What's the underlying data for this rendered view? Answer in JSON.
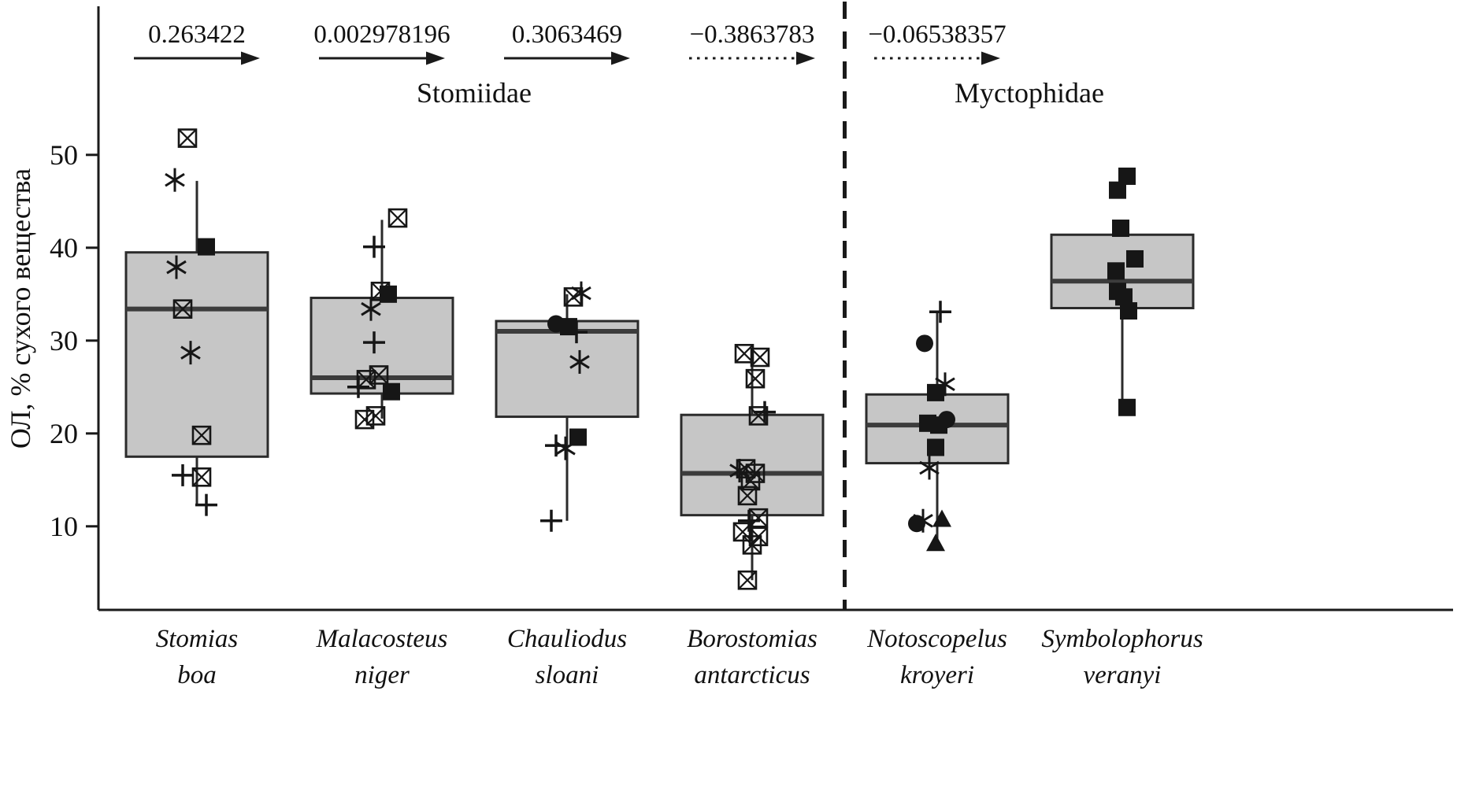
{
  "chart_data": {
    "type": "box",
    "title": "",
    "y_axis": {
      "label": "ОЛ, % сухого вещества",
      "ticks": [
        10,
        20,
        30,
        40,
        50
      ],
      "ylim": [
        1,
        66
      ]
    },
    "families": [
      {
        "name": "Stomiidae",
        "span": [
          0,
          3
        ]
      },
      {
        "name": "Myctophidae",
        "span": [
          4,
          5
        ]
      }
    ],
    "separator_after_index": 3,
    "colors": {
      "axis": "#1a1a1a",
      "box_fill": "#c6c6c6",
      "box_stroke": "#2b2b2b",
      "median": "#3c3c3c",
      "marker": "#161616"
    },
    "categories": [
      {
        "label_line1": "Stomias",
        "label_line2": "boa",
        "trend": {
          "value": "0.263422",
          "style": "solid"
        },
        "box": {
          "q1": 17.5,
          "median": 33.4,
          "q3": 39.5,
          "whisker_low": 12.3,
          "whisker_high": 47.2
        },
        "points": [
          {
            "marker": "boxed-x",
            "value": 51.8,
            "dx": -12
          },
          {
            "marker": "asterisk",
            "value": 47.3,
            "dx": -28
          },
          {
            "marker": "filled-square",
            "value": 40.1,
            "dx": 12
          },
          {
            "marker": "asterisk",
            "value": 37.9,
            "dx": -26
          },
          {
            "marker": "boxed-x",
            "value": 33.4,
            "dx": -18
          },
          {
            "marker": "asterisk",
            "value": 28.7,
            "dx": -8
          },
          {
            "marker": "boxed-x",
            "value": 19.8,
            "dx": 6
          },
          {
            "marker": "plus",
            "value": 15.5,
            "dx": -18
          },
          {
            "marker": "boxed-x",
            "value": 15.3,
            "dx": 6
          },
          {
            "marker": "plus",
            "value": 12.3,
            "dx": 12
          }
        ]
      },
      {
        "label_line1": "Malacosteus",
        "label_line2": "niger",
        "trend": {
          "value": "0.002978196",
          "style": "solid"
        },
        "box": {
          "q1": 24.3,
          "median": 26.0,
          "q3": 34.6,
          "whisker_low": 21.6,
          "whisker_high": 43.0
        },
        "points": [
          {
            "marker": "boxed-x",
            "value": 43.2,
            "dx": 20
          },
          {
            "marker": "plus",
            "value": 40.1,
            "dx": -10
          },
          {
            "marker": "boxed-x",
            "value": 35.3,
            "dx": -2
          },
          {
            "marker": "filled-square",
            "value": 35.0,
            "dx": 8
          },
          {
            "marker": "asterisk",
            "value": 33.4,
            "dx": -14
          },
          {
            "marker": "plus",
            "value": 29.8,
            "dx": -10
          },
          {
            "marker": "boxed-x",
            "value": 26.3,
            "dx": -4
          },
          {
            "marker": "boxed-x",
            "value": 25.8,
            "dx": -20
          },
          {
            "marker": "plus",
            "value": 25.0,
            "dx": -30
          },
          {
            "marker": "filled-square",
            "value": 24.5,
            "dx": 12
          },
          {
            "marker": "boxed-x",
            "value": 21.9,
            "dx": -8
          },
          {
            "marker": "boxed-x",
            "value": 21.5,
            "dx": -22
          }
        ]
      },
      {
        "label_line1": "Chauliodus",
        "label_line2": "sloani",
        "trend": {
          "value": "0.3063469",
          "style": "solid"
        },
        "box": {
          "q1": 21.8,
          "median": 31.0,
          "q3": 32.1,
          "whisker_low": 10.6,
          "whisker_high": 35.0
        },
        "points": [
          {
            "marker": "asterisk",
            "value": 35.1,
            "dx": 18
          },
          {
            "marker": "boxed-x",
            "value": 34.7,
            "dx": 8
          },
          {
            "marker": "filled-circle",
            "value": 31.8,
            "dx": -14
          },
          {
            "marker": "filled-square",
            "value": 31.5,
            "dx": 2
          },
          {
            "marker": "plus",
            "value": 30.9,
            "dx": 12
          },
          {
            "marker": "asterisk",
            "value": 27.7,
            "dx": 16
          },
          {
            "marker": "filled-square",
            "value": 19.6,
            "dx": 14
          },
          {
            "marker": "plus",
            "value": 18.7,
            "dx": -14
          },
          {
            "marker": "asterisk",
            "value": 18.4,
            "dx": -2
          },
          {
            "marker": "plus",
            "value": 10.6,
            "dx": -20
          }
        ]
      },
      {
        "label_line1": "Borostomias",
        "label_line2": "antarcticus",
        "trend": {
          "value": "−0.3863783",
          "style": "dashed"
        },
        "box": {
          "q1": 11.2,
          "median": 15.7,
          "q3": 22.0,
          "whisker_low": 4.2,
          "whisker_high": 28.4
        },
        "points": [
          {
            "marker": "boxed-x",
            "value": 28.6,
            "dx": -10
          },
          {
            "marker": "boxed-x",
            "value": 28.2,
            "dx": 10
          },
          {
            "marker": "boxed-x",
            "value": 25.9,
            "dx": 4
          },
          {
            "marker": "plus",
            "value": 22.3,
            "dx": 16
          },
          {
            "marker": "boxed-x",
            "value": 21.9,
            "dx": 8
          },
          {
            "marker": "boxed-x",
            "value": 16.2,
            "dx": -8
          },
          {
            "marker": "asterisk",
            "value": 16.0,
            "dx": -16
          },
          {
            "marker": "boxed-x",
            "value": 15.7,
            "dx": 4
          },
          {
            "marker": "boxed-x",
            "value": 14.9,
            "dx": -2
          },
          {
            "marker": "boxed-x",
            "value": 13.3,
            "dx": -6
          },
          {
            "marker": "boxed-x",
            "value": 10.9,
            "dx": 8
          },
          {
            "marker": "plus",
            "value": 10.6,
            "dx": -4
          },
          {
            "marker": "boxed-x",
            "value": 9.4,
            "dx": -12
          },
          {
            "marker": "boxed-x",
            "value": 8.9,
            "dx": 8
          },
          {
            "marker": "boxed-x",
            "value": 8.0,
            "dx": 0
          },
          {
            "marker": "boxed-x",
            "value": 4.2,
            "dx": -6
          }
        ]
      },
      {
        "label_line1": "Notoscopelus",
        "label_line2": "kroyeri",
        "trend": {
          "value": "−0.06538357",
          "style": "dashed"
        },
        "box": {
          "q1": 16.8,
          "median": 20.9,
          "q3": 24.2,
          "whisker_low": 8.1,
          "whisker_high": 33.0
        },
        "points": [
          {
            "marker": "plus",
            "value": 33.1,
            "dx": 4
          },
          {
            "marker": "filled-circle",
            "value": 29.7,
            "dx": -16
          },
          {
            "marker": "asterisk",
            "value": 25.3,
            "dx": 10
          },
          {
            "marker": "filled-square",
            "value": 24.4,
            "dx": -2
          },
          {
            "marker": "filled-circle",
            "value": 21.5,
            "dx": 12
          },
          {
            "marker": "filled-square",
            "value": 21.1,
            "dx": -12
          },
          {
            "marker": "filled-square",
            "value": 20.9,
            "dx": 2
          },
          {
            "marker": "filled-square",
            "value": 18.5,
            "dx": -2
          },
          {
            "marker": "asterisk",
            "value": 16.3,
            "dx": -10
          },
          {
            "marker": "asterisk",
            "value": 10.6,
            "dx": -18
          },
          {
            "marker": "filled-circle",
            "value": 10.3,
            "dx": -26
          },
          {
            "marker": "filled-triangle",
            "value": 10.7,
            "dx": 6
          },
          {
            "marker": "filled-triangle",
            "value": 8.1,
            "dx": -2
          }
        ]
      },
      {
        "label_line1": "Symbolophorus",
        "label_line2": "veranyi",
        "trend": null,
        "box": {
          "q1": 33.5,
          "median": 36.4,
          "q3": 41.4,
          "whisker_low": 22.8,
          "whisker_high": null
        },
        "points": [
          {
            "marker": "filled-square",
            "value": 47.7,
            "dx": 6
          },
          {
            "marker": "filled-square",
            "value": 46.2,
            "dx": -6
          },
          {
            "marker": "filled-square",
            "value": 42.1,
            "dx": -2
          },
          {
            "marker": "filled-square",
            "value": 38.8,
            "dx": 16
          },
          {
            "marker": "filled-square",
            "value": 37.5,
            "dx": -8
          },
          {
            "marker": "filled-square",
            "value": 35.3,
            "dx": -6
          },
          {
            "marker": "filled-square",
            "value": 34.7,
            "dx": 2
          },
          {
            "marker": "filled-square",
            "value": 33.2,
            "dx": 8
          },
          {
            "marker": "filled-square",
            "value": 22.8,
            "dx": 6
          }
        ]
      }
    ]
  }
}
